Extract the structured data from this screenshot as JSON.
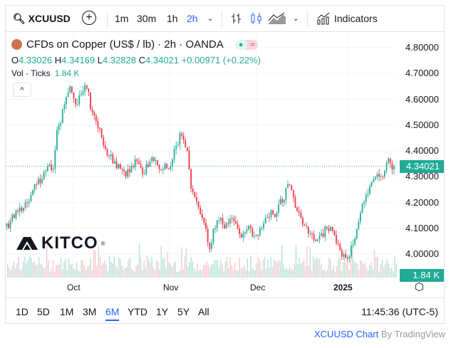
{
  "toolbar": {
    "symbol": "XCUUSD",
    "intervals": [
      "1m",
      "30m",
      "1h",
      "2h"
    ],
    "active_interval": "2h",
    "indicators_label": "Indicators"
  },
  "legend": {
    "title": "CFDs on Copper (US$ / lb) · 2h · OANDA",
    "o_label": "O",
    "o": "4.33026",
    "h_label": "H",
    "h": "4.34169",
    "l_label": "L",
    "l": "4.32828",
    "c_label": "C",
    "c": "4.34021",
    "change": "+0.00971 (+0.22%)",
    "vol_label": "Vol · Ticks",
    "vol_value": "1.84 K",
    "collapse": "^"
  },
  "price_tag": "4.34021",
  "vol_tag": "1.84 K",
  "logo": "KITCO",
  "ranges": [
    "1D",
    "5D",
    "1M",
    "3M",
    "6M",
    "YTD",
    "1Y",
    "5Y",
    "All"
  ],
  "active_range": "6M",
  "clock": "11:45:36 (UTC-5)",
  "footer": {
    "symbol_link": "XCUUSD Chart",
    "by": " By TradingView"
  },
  "colors": {
    "up": "#22ab94",
    "down": "#f23645",
    "accent": "#2962ff"
  },
  "chart_data": {
    "type": "candlestick",
    "title": "CFDs on Copper (US$ / lb) · 2h · OANDA",
    "ylim": [
      3.95,
      4.82
    ],
    "y_ticks": [
      "4.80000",
      "4.70000",
      "4.60000",
      "4.50000",
      "4.40000",
      "4.30000",
      "4.20000",
      "4.10000",
      "4.00000"
    ],
    "x_ticks": [
      "Oct",
      "Nov",
      "Dec",
      "2025"
    ],
    "closes": [
      4.1,
      4.14,
      4.18,
      4.2,
      4.23,
      4.27,
      4.29,
      4.34,
      4.33,
      4.5,
      4.58,
      4.65,
      4.58,
      4.62,
      4.64,
      4.55,
      4.49,
      4.42,
      4.38,
      4.36,
      4.33,
      4.3,
      4.34,
      4.36,
      4.31,
      4.34,
      4.36,
      4.33,
      4.35,
      4.34,
      4.42,
      4.46,
      4.4,
      4.24,
      4.18,
      4.12,
      4.02,
      4.1,
      4.14,
      4.12,
      4.14,
      4.1,
      4.08,
      4.11,
      4.07,
      4.1,
      4.14,
      4.17,
      4.16,
      4.2,
      4.27,
      4.22,
      4.16,
      4.11,
      4.08,
      4.05,
      4.08,
      4.1,
      4.09,
      4.04,
      4.0,
      3.99,
      4.06,
      4.16,
      4.23,
      4.28,
      4.31,
      4.3,
      4.37,
      4.34021
    ],
    "last": 4.34021
  }
}
